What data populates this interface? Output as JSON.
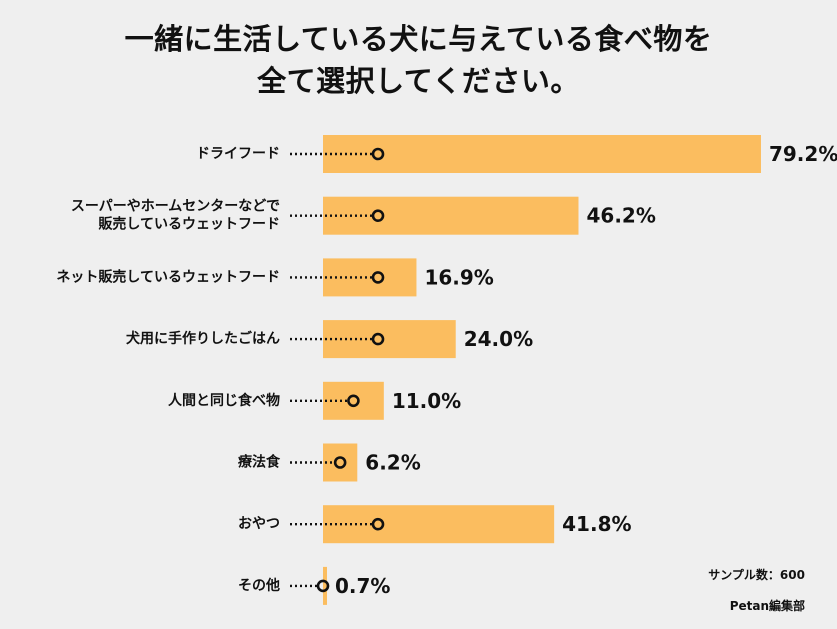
{
  "chart_data": {
    "type": "bar",
    "orientation": "horizontal",
    "title_lines": [
      "一緒に生活している犬に与えている食べ物を",
      "全て選択してください。"
    ],
    "categories": [
      [
        "ドライフード"
      ],
      [
        "スーパーやホームセンターなどで",
        "販売しているウェットフード"
      ],
      [
        "ネット販売しているウェットフード"
      ],
      [
        "犬用に手作りしたごはん"
      ],
      [
        "人間と同じ食べ物"
      ],
      [
        "療法食"
      ],
      [
        "おやつ"
      ],
      [
        "その他"
      ]
    ],
    "values": [
      79.2,
      46.2,
      16.9,
      24.0,
      11.0,
      6.2,
      41.8,
      0.7
    ],
    "value_labels": [
      "79.2%",
      "46.2%",
      "16.9%",
      "24.0%",
      "11.0%",
      "6.2%",
      "41.8%",
      "0.7%"
    ],
    "unit": "%",
    "xlim": [
      0,
      100
    ],
    "bar_color": "#fbbd5f",
    "marker_color": "#111111",
    "sample_note": "サンプル数：600",
    "source_note": "Petan編集部"
  }
}
